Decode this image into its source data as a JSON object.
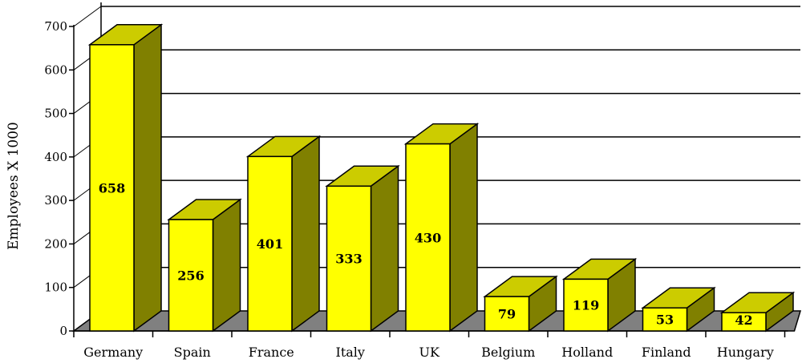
{
  "chart_data": {
    "type": "bar",
    "categories": [
      "Germany",
      "Spain",
      "France",
      "Italy",
      "UK",
      "Belgium",
      "Holland",
      "Finland",
      "Hungary"
    ],
    "values": [
      658,
      256,
      401,
      333,
      430,
      79,
      119,
      53,
      42
    ],
    "data_labels": [
      "658",
      "256",
      "401",
      "333",
      "430",
      "79",
      "119",
      "53",
      "42"
    ],
    "ylabel": "Employees X 1000",
    "ylim": [
      0,
      700
    ],
    "yticks": [
      "0",
      "100",
      "200",
      "300",
      "400",
      "500",
      "600",
      "700"
    ],
    "grid": true,
    "style": "3d",
    "colors": {
      "front": "#ffff00",
      "top": "#cccc00",
      "side": "#808000",
      "floor": "#808080"
    }
  }
}
